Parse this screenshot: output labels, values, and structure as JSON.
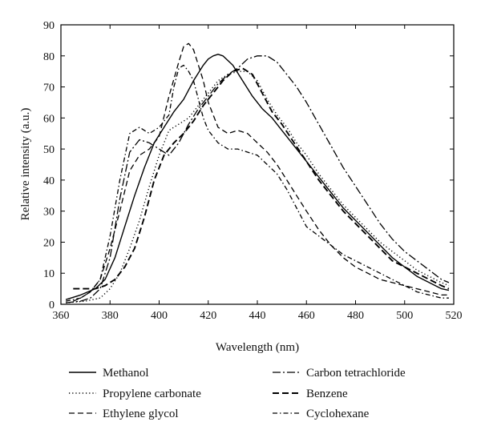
{
  "chart_data": {
    "type": "line",
    "title": "",
    "xlabel": "Wavelength (nm)",
    "ylabel": "Relative intensity (a.u.)",
    "xlim": [
      360,
      520
    ],
    "ylim": [
      0,
      90
    ],
    "xticks": [
      360,
      380,
      400,
      420,
      440,
      460,
      480,
      500,
      520
    ],
    "yticks": [
      0,
      10,
      20,
      30,
      40,
      50,
      60,
      70,
      80,
      90
    ],
    "grid": false,
    "legend_position": "bottom",
    "series": [
      {
        "name": "Methanol",
        "dash": "solid",
        "x": [
          362,
          368,
          374,
          378,
          382,
          386,
          390,
          394,
          398,
          402,
          406,
          410,
          414,
          418,
          420,
          422,
          424,
          426,
          430,
          434,
          438,
          442,
          446,
          450,
          455,
          460,
          465,
          470,
          475,
          480,
          485,
          490,
          495,
          500,
          505,
          510,
          515,
          518
        ],
        "y": [
          1.5,
          3,
          5,
          8,
          15,
          25,
          35,
          44,
          52,
          57,
          62,
          66,
          72,
          77,
          79,
          80,
          80.5,
          80,
          77,
          72,
          67,
          63,
          60,
          56,
          51,
          46,
          41,
          36,
          31,
          27,
          23,
          19,
          15,
          12,
          9,
          7,
          5,
          4.5
        ]
      },
      {
        "name": "Propylene carbonate",
        "dash": "dot",
        "x": [
          362,
          370,
          376,
          380,
          384,
          388,
          392,
          396,
          400,
          404,
          408,
          412,
          416,
          420,
          424,
          428,
          432,
          436,
          440,
          444,
          448,
          452,
          456,
          460,
          465,
          470,
          475,
          480,
          485,
          490,
          495,
          500,
          505,
          510,
          515,
          518
        ],
        "y": [
          0.5,
          1,
          2,
          5,
          10,
          18,
          27,
          38,
          48,
          56,
          58,
          60,
          64,
          68,
          72,
          74,
          75,
          75,
          72,
          66,
          61,
          57,
          52,
          48,
          42,
          37,
          32,
          28,
          24,
          20,
          17,
          14,
          11,
          9,
          7,
          6
        ]
      },
      {
        "name": "Ethylene glycol",
        "dash": "dash",
        "x": [
          365,
          368,
          372,
          376,
          380,
          384,
          388,
          392,
          396,
          400,
          404,
          408,
          410,
          412,
          414,
          416,
          418,
          420,
          424,
          428,
          432,
          436,
          440,
          444,
          448,
          452,
          456,
          460,
          465,
          470,
          475,
          480,
          485,
          490,
          495,
          500,
          505,
          510,
          515,
          518
        ],
        "y": [
          1,
          2,
          4,
          8,
          18,
          30,
          43,
          48,
          50,
          54,
          67,
          78,
          83,
          84,
          82,
          77,
          72,
          65,
          57,
          55,
          56,
          55,
          52,
          49,
          45,
          40,
          35,
          30,
          24,
          19,
          15,
          12,
          10,
          8,
          7,
          6,
          5,
          4,
          3,
          3
        ]
      },
      {
        "name": "Carbon tetrachloride",
        "dash": "dashdot-long",
        "x": [
          362,
          368,
          372,
          376,
          380,
          384,
          388,
          392,
          396,
          400,
          404,
          408,
          412,
          416,
          420,
          424,
          428,
          432,
          436,
          440,
          444,
          448,
          452,
          456,
          460,
          465,
          470,
          475,
          480,
          485,
          490,
          495,
          500,
          505,
          510,
          515,
          518
        ],
        "y": [
          0.5,
          1,
          2,
          5,
          15,
          34,
          49,
          53,
          52,
          50,
          48,
          52,
          58,
          63,
          67,
          71,
          74,
          76,
          79,
          80,
          80,
          78,
          74,
          70,
          65,
          58,
          51,
          44,
          38,
          32,
          26,
          21,
          17,
          14,
          11,
          8,
          7
        ]
      },
      {
        "name": "Benzene",
        "dash": "dash-heavy",
        "x": [
          365,
          370,
          374,
          378,
          382,
          386,
          390,
          394,
          398,
          402,
          406,
          410,
          414,
          418,
          422,
          426,
          430,
          434,
          438,
          442,
          446,
          450,
          455,
          460,
          465,
          470,
          475,
          480,
          485,
          490,
          495,
          500,
          505,
          510,
          515,
          518
        ],
        "y": [
          5,
          5,
          5,
          6,
          8,
          12,
          18,
          28,
          40,
          48,
          52,
          55,
          59,
          64,
          68,
          72,
          75,
          76,
          74,
          68,
          62,
          58,
          52,
          46,
          40,
          35,
          30,
          26,
          22,
          18,
          14,
          12,
          10,
          8,
          6,
          5
        ]
      },
      {
        "name": "Cyclohexane",
        "dash": "dashdot",
        "x": [
          362,
          368,
          372,
          376,
          380,
          384,
          388,
          392,
          396,
          400,
          404,
          406,
          408,
          410,
          412,
          414,
          416,
          418,
          420,
          424,
          428,
          432,
          436,
          440,
          444,
          448,
          452,
          456,
          460,
          465,
          470,
          475,
          480,
          485,
          490,
          495,
          500,
          505,
          510,
          515,
          518
        ],
        "y": [
          1,
          2,
          4,
          8,
          22,
          40,
          55,
          57,
          55,
          57,
          61,
          70,
          76,
          77,
          75,
          72,
          66,
          60,
          56,
          52,
          50,
          50,
          49,
          48,
          45,
          42,
          37,
          31,
          25,
          22,
          19,
          16,
          14,
          12,
          10,
          8,
          6,
          4,
          3,
          2,
          2
        ]
      }
    ]
  }
}
